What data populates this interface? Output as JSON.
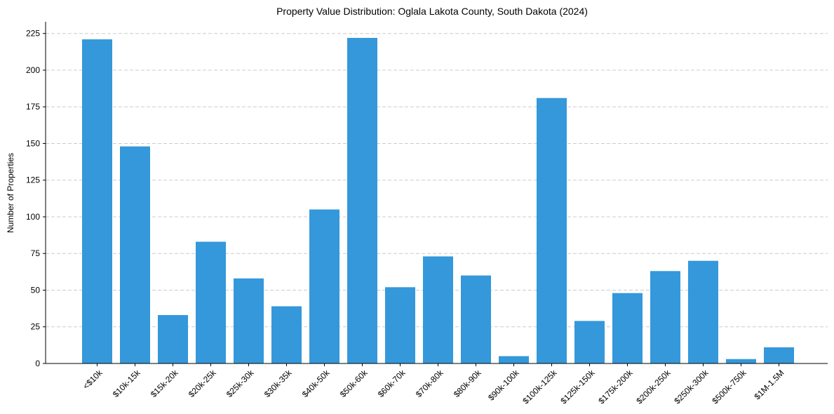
{
  "chart_data": {
    "type": "bar",
    "title": "Property Value Distribution: Oglala Lakota County, South Dakota (2024)",
    "xlabel": "",
    "ylabel": "Number of Properties",
    "categories": [
      "<$10k",
      "$10k-15k",
      "$15k-20k",
      "$20k-25k",
      "$25k-30k",
      "$30k-35k",
      "$40k-50k",
      "$50k-60k",
      "$60k-70k",
      "$70k-80k",
      "$80k-90k",
      "$90k-100k",
      "$100k-125k",
      "$125k-150k",
      "$175k-200k",
      "$200k-250k",
      "$250k-300k",
      "$500k-750k",
      "$1M-1.5M"
    ],
    "values": [
      221,
      148,
      33,
      83,
      58,
      39,
      105,
      222,
      52,
      73,
      60,
      5,
      181,
      29,
      48,
      63,
      70,
      3,
      11
    ],
    "ylim": [
      0,
      233
    ],
    "yticks": [
      0,
      25,
      50,
      75,
      100,
      125,
      150,
      175,
      200,
      225
    ],
    "grid": "horizontal-dashed",
    "bar_color": "#3498db"
  }
}
